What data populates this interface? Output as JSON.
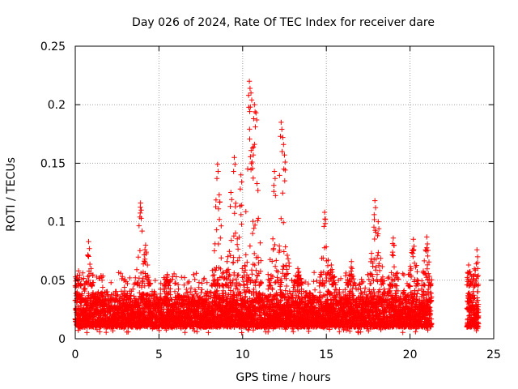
{
  "chart_data": {
    "type": "scatter",
    "title": "Day 026 of 2024, Rate Of TEC Index for receiver dare",
    "xlabel": "GPS time / hours",
    "ylabel": "ROTI / TECUs",
    "xlim": [
      0,
      25
    ],
    "ylim": [
      0,
      0.25
    ],
    "x_ticks": [
      0,
      5,
      10,
      15,
      20,
      25
    ],
    "x_tick_labels": [
      "0",
      "5",
      "10",
      "15",
      "20",
      "25"
    ],
    "y_ticks": [
      0,
      0.05,
      0.1,
      0.15,
      0.2,
      0.25
    ],
    "y_tick_labels": [
      "0",
      "0.05",
      "0.1",
      "0.15",
      "0.2",
      "0.25"
    ],
    "grid": true,
    "legend": "none",
    "marker": "+",
    "color": "#ff0000",
    "coverage_hours": [
      [
        0,
        21.3
      ],
      [
        23.4,
        24.1
      ]
    ],
    "baseline_band": [
      0.01,
      0.045
    ],
    "peaks": [
      {
        "x": 0.2,
        "y": 0.058
      },
      {
        "x": 0.8,
        "y": 0.083
      },
      {
        "x": 1.6,
        "y": 0.05
      },
      {
        "x": 2.9,
        "y": 0.05
      },
      {
        "x": 3.9,
        "y": 0.116
      },
      {
        "x": 4.2,
        "y": 0.08
      },
      {
        "x": 5.5,
        "y": 0.055
      },
      {
        "x": 8.5,
        "y": 0.149
      },
      {
        "x": 8.6,
        "y": 0.123
      },
      {
        "x": 9.3,
        "y": 0.125
      },
      {
        "x": 9.5,
        "y": 0.155
      },
      {
        "x": 9.9,
        "y": 0.14
      },
      {
        "x": 10.4,
        "y": 0.22
      },
      {
        "x": 10.5,
        "y": 0.21
      },
      {
        "x": 10.7,
        "y": 0.2
      },
      {
        "x": 10.8,
        "y": 0.193
      },
      {
        "x": 10.6,
        "y": 0.163
      },
      {
        "x": 11.9,
        "y": 0.143
      },
      {
        "x": 12.3,
        "y": 0.185
      },
      {
        "x": 12.4,
        "y": 0.172
      },
      {
        "x": 12.5,
        "y": 0.157
      },
      {
        "x": 13.3,
        "y": 0.06
      },
      {
        "x": 14.9,
        "y": 0.108
      },
      {
        "x": 15.3,
        "y": 0.063
      },
      {
        "x": 16.5,
        "y": 0.066
      },
      {
        "x": 17.9,
        "y": 0.118
      },
      {
        "x": 18.1,
        "y": 0.1
      },
      {
        "x": 19.0,
        "y": 0.086
      },
      {
        "x": 20.2,
        "y": 0.085
      },
      {
        "x": 21.0,
        "y": 0.087
      },
      {
        "x": 23.5,
        "y": 0.063
      },
      {
        "x": 24.0,
        "y": 0.076
      }
    ]
  }
}
